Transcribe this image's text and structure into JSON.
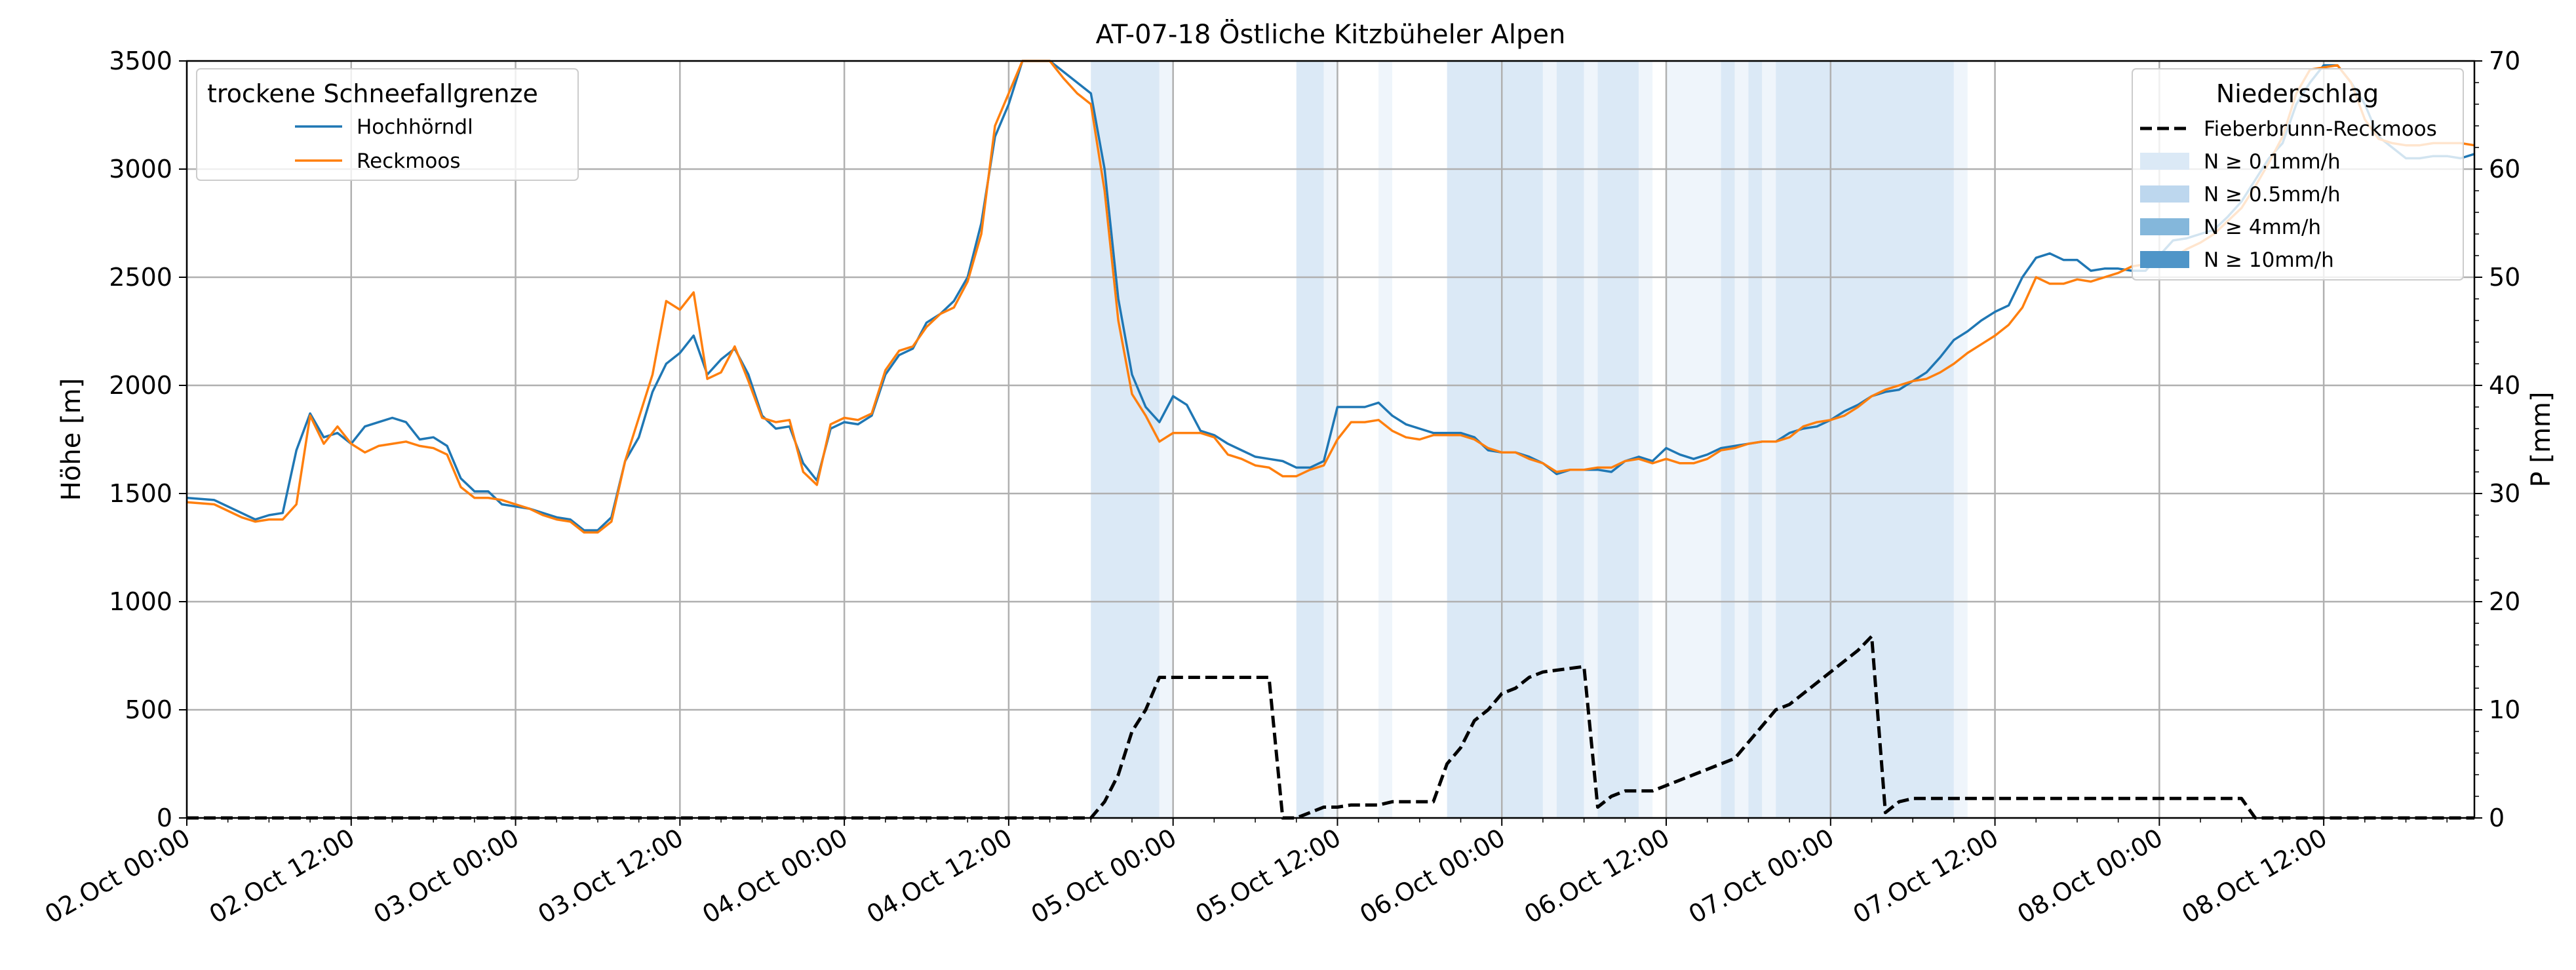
{
  "chart_data": {
    "type": "line",
    "title": "AT-07-18 Östliche Kitzbüheler Alpen",
    "ylabel": "Höhe [m]",
    "y2label": "P [mm]",
    "xlim_hours": [
      0,
      167
    ],
    "ylim": [
      0,
      3500
    ],
    "y2lim": [
      0,
      70
    ],
    "grid": true,
    "x_tick_labels": [
      "02.Oct 00:00",
      "02.Oct 12:00",
      "03.Oct 00:00",
      "03.Oct 12:00",
      "04.Oct 00:00",
      "04.Oct 12:00",
      "05.Oct 00:00",
      "05.Oct 12:00",
      "06.Oct 00:00",
      "06.Oct 12:00",
      "07.Oct 00:00",
      "07.Oct 12:00",
      "08.Oct 00:00",
      "08.Oct 12:00"
    ],
    "y_ticks": [
      0,
      500,
      1000,
      1500,
      2000,
      2500,
      3000,
      3500
    ],
    "y2_ticks": [
      0,
      10,
      20,
      30,
      40,
      50,
      60,
      70
    ],
    "legend_left": {
      "title": "trockene Schneefallgrenze",
      "placement": "top-left",
      "entries": [
        "Hochhörndl",
        "Reckmoos"
      ]
    },
    "legend_right": {
      "title": "Niederschlag",
      "placement": "top-right",
      "entries": [
        "Fieberbrunn-Reckmoos",
        "N ≥ 0.1mm/h",
        "N ≥ 0.5mm/h",
        "N ≥ 4mm/h",
        "N ≥ 10mm/h"
      ]
    },
    "colors": {
      "Hochhörndl": "#1f77b4",
      "Reckmoos": "#ff7f0e",
      "Fieberbrunn-Reckmoos": "#000000",
      "N ≥ 0.1mm/h": "#dbe9f6",
      "N ≥ 0.5mm/h": "#bdd7ee",
      "N ≥ 4mm/h": "#84b7db",
      "N ≥ 10mm/h": "#4f95c8",
      "band_light": "#eff5fb",
      "grid": "#b0b0b0"
    },
    "x_hours": [
      0,
      2,
      4,
      5,
      6,
      7,
      8,
      9,
      10,
      11,
      12,
      13,
      14,
      15,
      16,
      17,
      18,
      19,
      20,
      21,
      22,
      23,
      24,
      25,
      26,
      27,
      28,
      29,
      30,
      31,
      32,
      33,
      34,
      35,
      36,
      37,
      38,
      39,
      40,
      41,
      42,
      43,
      44,
      45,
      46,
      47,
      48,
      49,
      50,
      51,
      52,
      53,
      54,
      55,
      56,
      57,
      58,
      59,
      60,
      61,
      62,
      63,
      64,
      65,
      66,
      67,
      68,
      69,
      70,
      71,
      72,
      73,
      74,
      75,
      76,
      77,
      78,
      79,
      80,
      81,
      82,
      83,
      84,
      85,
      86,
      87,
      88,
      89,
      90,
      91,
      92,
      93,
      94,
      95,
      96,
      97,
      98,
      99,
      100,
      101,
      102,
      103,
      104,
      105,
      106,
      107,
      108,
      109,
      110,
      111,
      112,
      113,
      114,
      115,
      116,
      117,
      118,
      119,
      120,
      121,
      122,
      123,
      124,
      125,
      126,
      127,
      128,
      129,
      130,
      131,
      132,
      133,
      134,
      135,
      136,
      137,
      138,
      139,
      140,
      141,
      142,
      143,
      144,
      145,
      146,
      147,
      148,
      149,
      150,
      151,
      152,
      153,
      154,
      155,
      156,
      157,
      158,
      159,
      160,
      161,
      162,
      163,
      164,
      165,
      166,
      167
    ],
    "series": [
      {
        "name": "Hochhörndl",
        "axis": "left",
        "values": [
          1480,
          1470,
          1410,
          1380,
          1400,
          1410,
          1700,
          1870,
          1760,
          1780,
          1730,
          1810,
          1830,
          1850,
          1830,
          1750,
          1760,
          1720,
          1570,
          1510,
          1510,
          1450,
          1440,
          1430,
          1410,
          1390,
          1380,
          1330,
          1330,
          1390,
          1650,
          1760,
          1970,
          2100,
          2150,
          2230,
          2050,
          2120,
          2170,
          2050,
          1860,
          1800,
          1810,
          1640,
          1560,
          1800,
          1830,
          1820,
          1860,
          2050,
          2140,
          2170,
          2290,
          2330,
          2390,
          2500,
          2750,
          3150,
          3300,
          3500,
          3500,
          3500,
          3450,
          3400,
          3350,
          3000,
          2400,
          2050,
          1900,
          1830,
          1950,
          1910,
          1790,
          1770,
          1730,
          1700,
          1670,
          1660,
          1650,
          1620,
          1620,
          1650,
          1900,
          1900,
          1900,
          1920,
          1860,
          1820,
          1800,
          1780,
          1780,
          1780,
          1760,
          1700,
          1690,
          1690,
          1670,
          1640,
          1590,
          1610,
          1610,
          1610,
          1600,
          1650,
          1670,
          1650,
          1710,
          1680,
          1660,
          1680,
          1710,
          1720,
          1730,
          1740,
          1740,
          1780,
          1800,
          1810,
          1840,
          1880,
          1910,
          1950,
          1970,
          1980,
          2020,
          2060,
          2130,
          2210,
          2250,
          2300,
          2340,
          2370,
          2500,
          2590,
          2610,
          2580,
          2580,
          2530,
          2540,
          2540,
          2530,
          2530,
          2600,
          2670,
          2680,
          2700,
          2720,
          2780,
          2850,
          2950,
          3050,
          3120,
          3300,
          3400,
          3480,
          3480,
          3400,
          3300,
          3150,
          3100,
          3050,
          3050,
          3060,
          3060,
          3050,
          3070
        ]
      },
      {
        "name": "Reckmoos",
        "axis": "left",
        "values": [
          1460,
          1450,
          1390,
          1370,
          1380,
          1380,
          1450,
          1860,
          1730,
          1810,
          1730,
          1690,
          1720,
          1730,
          1740,
          1720,
          1710,
          1680,
          1530,
          1480,
          1480,
          1470,
          1450,
          1430,
          1400,
          1380,
          1370,
          1320,
          1320,
          1370,
          1650,
          1850,
          2050,
          2390,
          2350,
          2430,
          2030,
          2060,
          2180,
          2020,
          1850,
          1830,
          1840,
          1600,
          1540,
          1820,
          1850,
          1840,
          1870,
          2070,
          2160,
          2180,
          2270,
          2330,
          2360,
          2480,
          2700,
          3200,
          3350,
          3500,
          3500,
          3500,
          3420,
          3350,
          3300,
          2900,
          2300,
          1960,
          1860,
          1740,
          1780,
          1780,
          1780,
          1760,
          1680,
          1660,
          1630,
          1620,
          1580,
          1580,
          1610,
          1630,
          1750,
          1830,
          1830,
          1840,
          1790,
          1760,
          1750,
          1770,
          1770,
          1770,
          1750,
          1710,
          1690,
          1690,
          1660,
          1640,
          1600,
          1610,
          1610,
          1620,
          1620,
          1650,
          1660,
          1640,
          1660,
          1640,
          1640,
          1660,
          1700,
          1710,
          1730,
          1740,
          1740,
          1760,
          1810,
          1830,
          1840,
          1860,
          1900,
          1950,
          1980,
          2000,
          2020,
          2030,
          2060,
          2100,
          2150,
          2190,
          2230,
          2280,
          2360,
          2500,
          2470,
          2470,
          2490,
          2480,
          2500,
          2520,
          2550,
          2560,
          2580,
          2590,
          2630,
          2660,
          2700,
          2760,
          2820,
          2920,
          3030,
          3150,
          3350,
          3460,
          3470,
          3480,
          3400,
          3230,
          3140,
          3120,
          3110,
          3110,
          3120,
          3120,
          3120,
          3110
        ]
      },
      {
        "name": "Fieberbrunn-Reckmoos",
        "axis": "right",
        "style": "dashed",
        "points": [
          [
            0,
            0
          ],
          [
            66,
            0
          ],
          [
            67,
            1.5
          ],
          [
            68,
            4
          ],
          [
            69,
            8
          ],
          [
            70,
            10
          ],
          [
            71,
            13
          ],
          [
            72,
            13
          ],
          [
            79,
            13
          ],
          [
            80,
            0
          ],
          [
            81,
            0
          ],
          [
            82,
            0.5
          ],
          [
            83,
            1
          ],
          [
            84,
            1
          ],
          [
            85,
            1.2
          ],
          [
            86,
            1.2
          ],
          [
            87,
            1.2
          ],
          [
            88,
            1.5
          ],
          [
            91,
            1.5
          ],
          [
            92,
            5
          ],
          [
            93,
            6.5
          ],
          [
            94,
            9
          ],
          [
            95,
            10
          ],
          [
            96,
            11.5
          ],
          [
            97,
            12
          ],
          [
            98,
            13
          ],
          [
            99,
            13.5
          ],
          [
            102,
            14
          ],
          [
            103,
            1
          ],
          [
            104,
            2
          ],
          [
            105,
            2.5
          ],
          [
            107,
            2.5
          ],
          [
            108,
            3
          ],
          [
            109,
            3.5
          ],
          [
            110,
            4
          ],
          [
            111,
            4.5
          ],
          [
            112,
            5
          ],
          [
            113,
            5.5
          ],
          [
            114,
            7
          ],
          [
            115,
            8.5
          ],
          [
            116,
            10
          ],
          [
            117,
            10.5
          ],
          [
            118,
            11.5
          ],
          [
            119,
            12.5
          ],
          [
            120,
            13.5
          ],
          [
            121,
            14.5
          ],
          [
            122,
            15.5
          ],
          [
            123,
            16.8
          ],
          [
            124,
            0.5
          ],
          [
            125,
            1.5
          ],
          [
            126,
            1.8
          ],
          [
            135,
            1.8
          ],
          [
            150,
            1.8
          ],
          [
            151,
            0
          ],
          [
            167,
            0
          ]
        ]
      }
    ],
    "precip_bands": [
      {
        "from": 66,
        "to": 71,
        "level": "N ≥ 0.1mm/h"
      },
      {
        "from": 71,
        "to": 72,
        "level": "light"
      },
      {
        "from": 81,
        "to": 83,
        "level": "N ≥ 0.1mm/h"
      },
      {
        "from": 83,
        "to": 84,
        "level": "light"
      },
      {
        "from": 87,
        "to": 88,
        "level": "light"
      },
      {
        "from": 92,
        "to": 99,
        "level": "N ≥ 0.1mm/h"
      },
      {
        "from": 99,
        "to": 100,
        "level": "light"
      },
      {
        "from": 100,
        "to": 102,
        "level": "N ≥ 0.1mm/h"
      },
      {
        "from": 102,
        "to": 103,
        "level": "light"
      },
      {
        "from": 103,
        "to": 106,
        "level": "N ≥ 0.1mm/h"
      },
      {
        "from": 106,
        "to": 107,
        "level": "light"
      },
      {
        "from": 108,
        "to": 112,
        "level": "light"
      },
      {
        "from": 112,
        "to": 113,
        "level": "N ≥ 0.1mm/h"
      },
      {
        "from": 113,
        "to": 114,
        "level": "light"
      },
      {
        "from": 114,
        "to": 115,
        "level": "N ≥ 0.1mm/h"
      },
      {
        "from": 115,
        "to": 116,
        "level": "light"
      },
      {
        "from": 116,
        "to": 129,
        "level": "N ≥ 0.1mm/h"
      },
      {
        "from": 129,
        "to": 130,
        "level": "light"
      }
    ]
  }
}
